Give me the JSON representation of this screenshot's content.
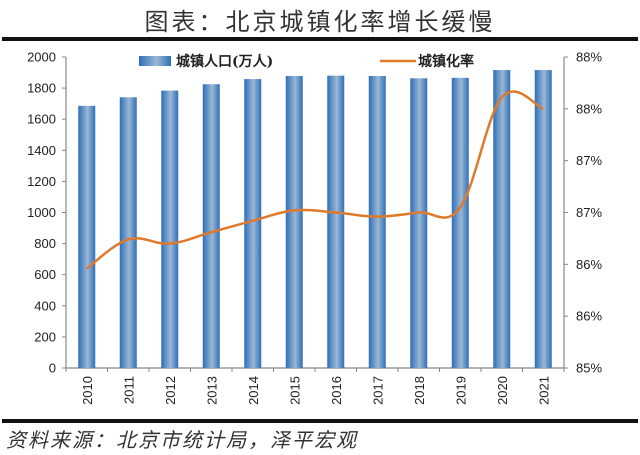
{
  "header": {
    "title": "图表：北京城镇化率增长缓慢"
  },
  "footer": {
    "source": "资料来源：北京市统计局，泽平宏观"
  },
  "legend": {
    "bar_label": "城镇人口(万人)",
    "line_label": "城镇化率"
  },
  "colors": {
    "bar": "#2e6fb8",
    "bar_highlight": "#9bb7d4",
    "line": "#e07a2a",
    "axis": "#888888"
  },
  "chart_data": {
    "type": "bar",
    "title": "图表：北京城镇化率增长缓慢",
    "xlabel": "",
    "categories": [
      "2010",
      "2011",
      "2012",
      "2013",
      "2014",
      "2015",
      "2016",
      "2017",
      "2018",
      "2019",
      "2020",
      "2021"
    ],
    "series": [
      {
        "name": "城镇人口(万人)",
        "type": "bar",
        "axis": "left",
        "values": [
          1686,
          1741,
          1784,
          1825,
          1858,
          1878,
          1880,
          1878,
          1863,
          1866,
          1916,
          1916
        ]
      },
      {
        "name": "城镇化率",
        "type": "line",
        "axis": "right",
        "values": [
          85.96,
          86.24,
          86.2,
          86.31,
          86.42,
          86.52,
          86.5,
          86.46,
          86.5,
          86.55,
          87.61,
          87.5
        ]
      }
    ],
    "left_axis": {
      "ylim": [
        0,
        2000
      ],
      "ticks": [
        "0",
        "200",
        "400",
        "600",
        "800",
        "1000",
        "1200",
        "1400",
        "1600",
        "1800",
        "2000"
      ]
    },
    "right_axis": {
      "ylim": [
        85.0,
        88.0
      ],
      "ticks": [
        "85%",
        "86%",
        "86%",
        "87%",
        "87%",
        "88%",
        "88%"
      ]
    },
    "x_tick_rotation": -90,
    "grid": false,
    "legend_position": "top"
  }
}
